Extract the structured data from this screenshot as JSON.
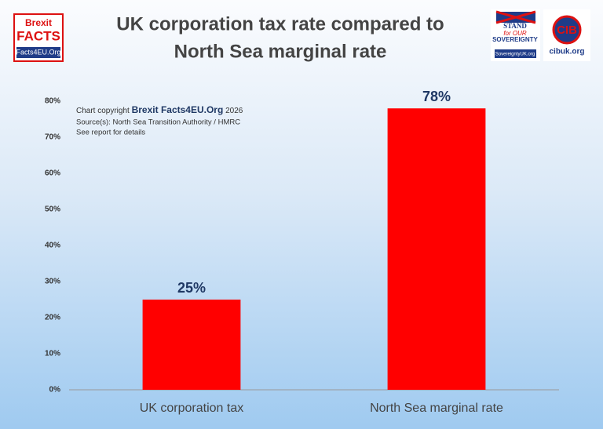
{
  "chart_data": {
    "type": "bar",
    "title": [
      "UK corporation tax rate compared to",
      "North Sea marginal rate"
    ],
    "categories": [
      "UK corporation tax",
      "North Sea marginal rate"
    ],
    "values": [
      25,
      78
    ],
    "value_labels": [
      "25%",
      "78%"
    ],
    "color": "#ff0000",
    "ylim": [
      0,
      80
    ],
    "yticks": [
      {
        "value": 0,
        "label": "0%"
      },
      {
        "value": 10,
        "label": "10%"
      },
      {
        "value": 20,
        "label": "20%"
      },
      {
        "value": 30,
        "label": "30%"
      },
      {
        "value": 40,
        "label": "40%"
      },
      {
        "value": 50,
        "label": "50%"
      },
      {
        "value": 60,
        "label": "60%"
      },
      {
        "value": 70,
        "label": "70%"
      },
      {
        "value": 80,
        "label": "80%"
      }
    ],
    "grid": false,
    "notes": {
      "copyright": "Chart copyright",
      "brand": "Brexit Facts4EU.Org",
      "year": "2026",
      "source": "Source(s): North Sea Transition Authority / HMRC",
      "report": "See report for details"
    }
  },
  "logos": {
    "left": {
      "line1": "Brexit",
      "line2": "FACTS",
      "url": "Facts4EU.Org"
    },
    "stand": {
      "line1": "STAND",
      "line2": "for OUR",
      "line3": "SOVEREIGNTY",
      "url": "SovereigntyUK.org"
    },
    "cib": {
      "mark": "CIB",
      "url": "cibuk.org"
    }
  }
}
